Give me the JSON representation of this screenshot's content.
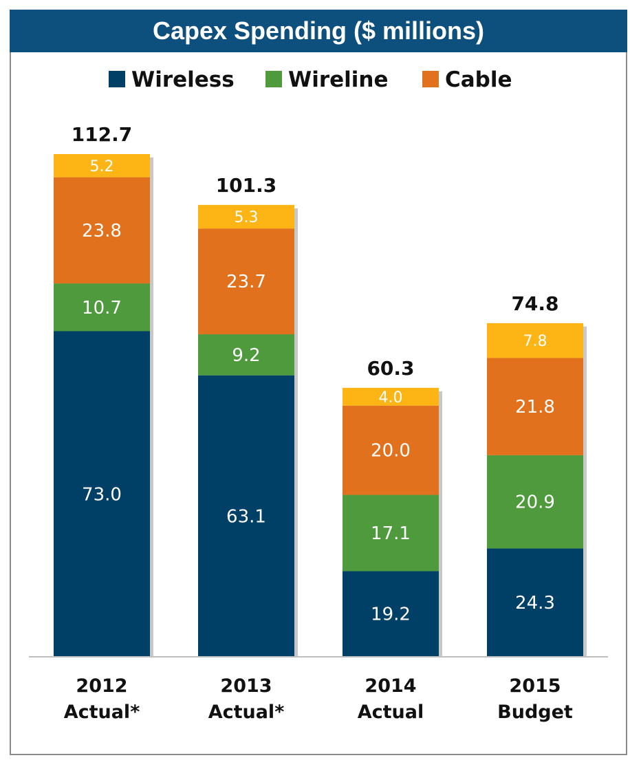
{
  "chart_data": {
    "type": "bar",
    "stacked": true,
    "title": "Capex Spending ($ millions)",
    "categories": [
      [
        "2012",
        "Actual*"
      ],
      [
        "2013",
        "Actual*"
      ],
      [
        "2014",
        "Actual"
      ],
      [
        "2015",
        "Budget"
      ]
    ],
    "series": [
      {
        "name": "Wireless",
        "color": "#003f66",
        "values": [
          73.0,
          63.1,
          19.2,
          24.3
        ]
      },
      {
        "name": "Wireline",
        "color": "#4e9a3c",
        "values": [
          10.7,
          9.2,
          17.1,
          20.9
        ]
      },
      {
        "name": "Cable",
        "color": "#e2711d",
        "values": [
          23.8,
          23.7,
          20.0,
          21.8
        ]
      },
      {
        "name": "",
        "color": "#fdb515",
        "values": [
          5.2,
          5.3,
          4.0,
          7.8
        ]
      }
    ],
    "value_labels": [
      [
        "73.0",
        "10.7",
        "23.8",
        "5.2"
      ],
      [
        "63.1",
        "9.2",
        "23.7",
        "5.3"
      ],
      [
        "19.2",
        "17.1",
        "20.0",
        "4.0"
      ],
      [
        "24.3",
        "20.9",
        "21.8",
        "7.8"
      ]
    ],
    "totals": [
      "112.7",
      "101.3",
      "60.3",
      "74.8"
    ],
    "legend": {
      "position": "top",
      "entries": [
        "Wireless",
        "Wireline",
        "Cable"
      ]
    },
    "ylim": [
      0,
      112.7
    ],
    "grid": false,
    "xlabel": "",
    "ylabel": ""
  }
}
